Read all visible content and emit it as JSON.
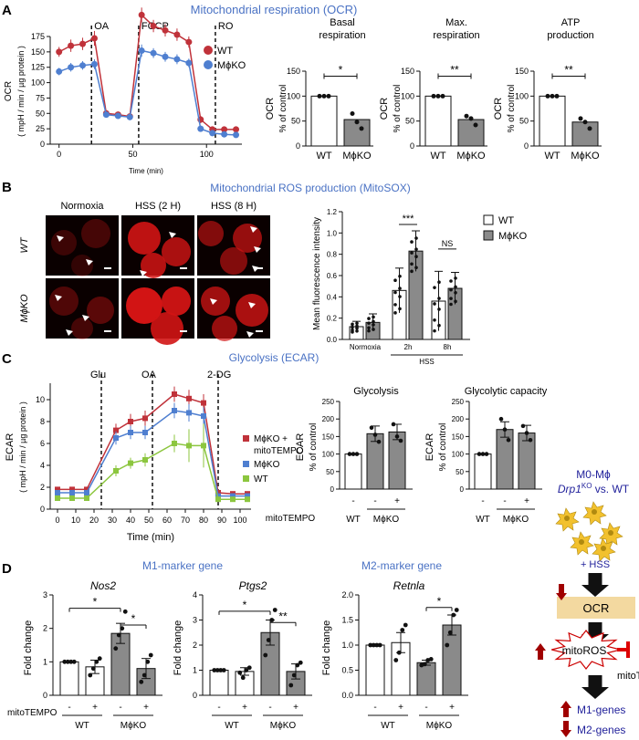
{
  "colors": {
    "red": "#c0323a",
    "blue": "#4f7fd0",
    "green": "#8cc63f",
    "grey": "#8a8a8a",
    "title": "#4a72c4",
    "darkred": "#a00000",
    "navy": "#1f1f9a",
    "orange": "#f3d9a0"
  },
  "panelA": {
    "letter": "A",
    "title": "Mitochondrial respiration (OCR)",
    "line": {
      "ylabel": "OCR",
      "ylabel2": "( mpH / min / µg protein )",
      "xlabel": "Time (min)",
      "yticks": [
        "0",
        "25",
        "50",
        "75",
        "100",
        "125",
        "150",
        "175"
      ],
      "xticks": [
        "0",
        "50",
        "100"
      ],
      "markers": [
        "OA",
        "FCCP",
        "RO"
      ],
      "legend": [
        "WT",
        "MϕKO"
      ],
      "x": [
        0,
        8,
        16,
        24,
        32,
        40,
        48,
        56,
        64,
        72,
        80,
        88,
        96,
        104,
        112,
        120
      ],
      "series": [
        {
          "name": "WT",
          "y": [
            150,
            160,
            163,
            172,
            50,
            48,
            45,
            210,
            192,
            185,
            178,
            166,
            40,
            24,
            24,
            24
          ],
          "err": [
            8,
            10,
            10,
            12,
            4,
            4,
            4,
            12,
            10,
            10,
            10,
            9,
            6,
            5,
            5,
            5
          ]
        },
        {
          "name": "MϕKO",
          "y": [
            118,
            125,
            128,
            130,
            48,
            46,
            44,
            152,
            148,
            142,
            138,
            132,
            25,
            18,
            16,
            15
          ],
          "err": [
            6,
            7,
            7,
            8,
            4,
            4,
            4,
            10,
            8,
            8,
            8,
            7,
            5,
            4,
            4,
            4
          ]
        }
      ]
    },
    "bars": [
      {
        "title1": "Basal",
        "title2": "respiration",
        "yticks": [
          "0",
          "50",
          "100",
          "150"
        ],
        "ylim": [
          0,
          150
        ],
        "sig": "*",
        "values": [
          100,
          53
        ],
        "points": [
          [
            100,
            100,
            100
          ],
          [
            65,
            48,
            35
          ]
        ]
      },
      {
        "title1": "Max.",
        "title2": "respiration",
        "yticks": [
          "0",
          "50",
          "100",
          "150"
        ],
        "ylim": [
          0,
          150
        ],
        "sig": "**",
        "values": [
          100,
          53
        ],
        "points": [
          [
            100,
            100,
            100
          ],
          [
            60,
            55,
            42
          ]
        ]
      },
      {
        "title1": "ATP",
        "title2": "production",
        "yticks": [
          "0",
          "50",
          "100",
          "150"
        ],
        "ylim": [
          0,
          150
        ],
        "sig": "**",
        "values": [
          100,
          48
        ],
        "points": [
          [
            100,
            100,
            100
          ],
          [
            55,
            48,
            35
          ]
        ]
      }
    ],
    "bar_ylabel1": "OCR",
    "bar_ylabel2": "% of control",
    "bar_xticks": [
      "WT",
      "MϕKO"
    ]
  },
  "panelB": {
    "letter": "B",
    "title": "Mitochondrial ROS production (MitoSOX)",
    "cols": [
      "Normoxia",
      "HSS (2 H)",
      "HSS (8 H)"
    ],
    "rows": [
      "WT",
      "MϕKO"
    ],
    "chart": {
      "ylabel": "Mean fluorescence intensity",
      "yticks": [
        "0.0",
        "0.2",
        "0.4",
        "0.6",
        "0.8",
        "1.0",
        "1.2"
      ],
      "ylim": [
        0,
        1.2
      ],
      "groups": [
        "Normoxia",
        "2h",
        "8h"
      ],
      "group_label": "HSS",
      "legend": [
        "WT",
        "MϕKO"
      ],
      "values": [
        [
          0.12,
          0.16
        ],
        [
          0.46,
          0.83
        ],
        [
          0.36,
          0.48
        ]
      ],
      "errors": [
        [
          0.05,
          0.08
        ],
        [
          0.21,
          0.19
        ],
        [
          0.28,
          0.15
        ]
      ],
      "sig": [
        "***",
        "NS"
      ]
    }
  },
  "panelC": {
    "letter": "C",
    "title": "Glycolysis (ECAR)",
    "line": {
      "ylabel": "ECAR",
      "ylabel2": "( mpH / min / µg protein )",
      "xlabel": "Time (min)",
      "yticks": [
        "0",
        "2",
        "4",
        "6",
        "8",
        "10"
      ],
      "xticks": [
        "0",
        "10",
        "20",
        "30",
        "40",
        "50",
        "60",
        "70",
        "80",
        "90",
        "100"
      ],
      "markers": [
        "Glu",
        "OA",
        "2-DG"
      ],
      "legend": [
        "MϕKO +",
        "mitoTEMPO",
        "MϕKO",
        "WT"
      ],
      "x": [
        0,
        8,
        16,
        32,
        40,
        48,
        64,
        72,
        80,
        88,
        96,
        104
      ],
      "series": [
        {
          "name": "MϕKO + mitoTEMPO",
          "y": [
            1.8,
            1.8,
            1.8,
            7.2,
            8.0,
            8.3,
            10.5,
            10.1,
            9.7,
            1.5,
            1.4,
            1.4
          ],
          "err": [
            0.2,
            0.2,
            0.2,
            0.6,
            0.7,
            0.7,
            0.7,
            0.8,
            0.8,
            0.2,
            0.2,
            0.2
          ]
        },
        {
          "name": "MϕKO",
          "y": [
            1.5,
            1.5,
            1.5,
            6.5,
            7.0,
            7.0,
            9.0,
            8.8,
            8.5,
            1.2,
            1.2,
            1.2
          ],
          "err": [
            0.2,
            0.2,
            0.2,
            0.6,
            0.6,
            0.6,
            0.7,
            0.8,
            0.8,
            0.2,
            0.2,
            0.2
          ]
        },
        {
          "name": "WT",
          "y": [
            1.0,
            1.0,
            1.0,
            3.5,
            4.2,
            4.5,
            6.0,
            5.8,
            5.8,
            0.9,
            0.9,
            0.9
          ],
          "err": [
            0.2,
            0.2,
            0.2,
            0.5,
            0.5,
            0.6,
            0.8,
            1.5,
            2.0,
            0.2,
            0.2,
            0.2
          ]
        }
      ]
    },
    "bars": [
      {
        "title": "Glycolysis",
        "values": [
          100,
          158,
          163
        ],
        "points": [
          [
            100,
            100,
            100
          ],
          [
            175,
            155,
            135
          ],
          [
            185,
            150,
            138
          ]
        ]
      },
      {
        "title": "Glycolytic capacity",
        "values": [
          100,
          170,
          160
        ],
        "points": [
          [
            100,
            100,
            100
          ],
          [
            200,
            170,
            140
          ],
          [
            180,
            160,
            140
          ]
        ]
      }
    ],
    "bar_ylabel1": "ECAR",
    "bar_ylabel2": "% of control",
    "yticks": [
      "0",
      "50",
      "100",
      "150",
      "200",
      "250"
    ],
    "ylim": [
      0,
      250
    ],
    "mito_label": "mitoTEMPO",
    "signs": [
      "-",
      "-",
      "+"
    ],
    "xgroups": [
      "WT",
      "MϕKO"
    ]
  },
  "panelD": {
    "letter": "D",
    "m1_title": "M1-marker gene",
    "m2_title": "M2-marker gene",
    "ylabel": "Fold change",
    "mito_label": "mitoTEMPO",
    "signs": [
      "-",
      "+",
      "-",
      "+"
    ],
    "xgroups": [
      "WT",
      "MϕKO"
    ],
    "charts": [
      {
        "gene": "Nos2",
        "yticks": [
          "0",
          "1",
          "2",
          "3"
        ],
        "ylim": [
          0,
          3
        ],
        "values": [
          1.0,
          0.85,
          1.85,
          0.8
        ],
        "errors": [
          0,
          0.2,
          0.3,
          0.3
        ],
        "points": [
          [
            1,
            1,
            1,
            1
          ],
          [
            0.6,
            0.8,
            1.0,
            1.1
          ],
          [
            1.4,
            1.8,
            2.0,
            2.5
          ],
          [
            0.4,
            0.6,
            1.0,
            1.2
          ]
        ],
        "sig": [
          "*",
          "*"
        ]
      },
      {
        "gene": "Ptgs2",
        "yticks": [
          "0",
          "1",
          "2",
          "3",
          "4"
        ],
        "ylim": [
          0,
          4
        ],
        "values": [
          1.0,
          0.95,
          2.5,
          0.95
        ],
        "errors": [
          0,
          0.15,
          0.5,
          0.3
        ],
        "points": [
          [
            1,
            1,
            1,
            1
          ],
          [
            0.9,
            0.7,
            1.0,
            1.1
          ],
          [
            1.6,
            2.2,
            3.0,
            3.4
          ],
          [
            0.4,
            0.8,
            1.2,
            1.3
          ]
        ],
        "sig": [
          "*",
          "**"
        ]
      },
      {
        "gene": "Retnla",
        "yticks": [
          "0.0",
          "0.5",
          "1.0",
          "1.5",
          "2.0"
        ],
        "ylim": [
          0,
          2.0
        ],
        "values": [
          1.0,
          1.05,
          0.65,
          1.4
        ],
        "errors": [
          0,
          0.2,
          0.05,
          0.2
        ],
        "points": [
          [
            1,
            1,
            1,
            1
          ],
          [
            0.7,
            0.85,
            1.3,
            1.4
          ],
          [
            0.6,
            0.62,
            0.7,
            0.72
          ],
          [
            1.0,
            1.25,
            1.6,
            1.7
          ]
        ],
        "sig": [
          "*"
        ]
      }
    ]
  },
  "schematic": {
    "line1": "M0-Mϕ",
    "line2a": "Drp1",
    "line2sup": "KO",
    "line2b": " vs. WT",
    "hss": "+ HSS",
    "ocr": "OCR",
    "ros": "mitoROS",
    "mitotempo": "mitoTEMPO",
    "m1": "M1-genes",
    "m2": "M2-genes"
  }
}
